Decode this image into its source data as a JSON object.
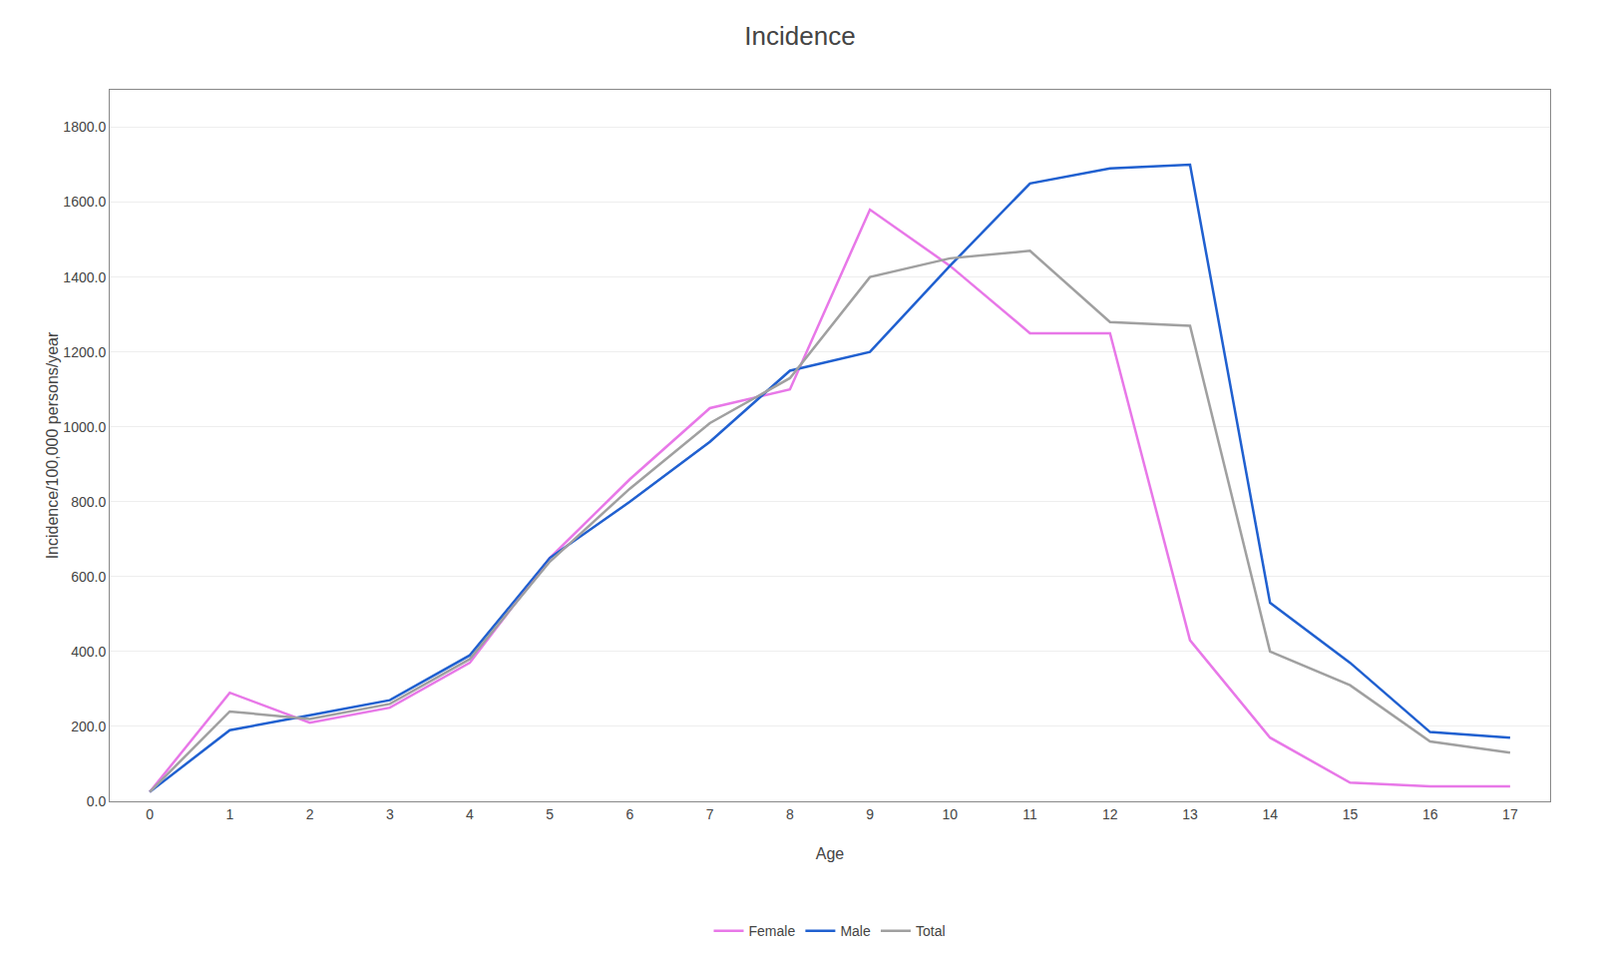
{
  "chart_data": {
    "type": "line",
    "title": "Incidence",
    "xlabel": "Age",
    "ylabel": "Incidence/100,000 persons/year",
    "x": [
      0,
      1,
      2,
      3,
      4,
      5,
      6,
      7,
      8,
      9,
      10,
      11,
      12,
      13,
      14,
      15,
      16,
      17
    ],
    "series": [
      {
        "name": "Female",
        "color": "#e878e8",
        "values": [
          25,
          290,
          210,
          250,
          370,
          650,
          860,
          1050,
          1100,
          1580,
          1430,
          1250,
          1250,
          430,
          170,
          50,
          40,
          40
        ]
      },
      {
        "name": "Male",
        "color": "#2060d0",
        "values": [
          25,
          190,
          230,
          270,
          390,
          650,
          800,
          960,
          1150,
          1200,
          1430,
          1650,
          1690,
          1700,
          530,
          370,
          185,
          170
        ]
      },
      {
        "name": "Total",
        "color": "#a0a0a0",
        "values": [
          25,
          240,
          220,
          260,
          380,
          640,
          835,
          1010,
          1130,
          1400,
          1450,
          1470,
          1280,
          1270,
          400,
          310,
          160,
          130
        ]
      }
    ],
    "xlim": [
      -0.5,
      17.5
    ],
    "xticks": [
      0,
      1,
      2,
      3,
      4,
      5,
      6,
      7,
      8,
      9,
      10,
      11,
      12,
      13,
      14,
      15,
      16,
      17
    ],
    "ylim": [
      0.0,
      1900.0
    ],
    "yticks": [
      {
        "value": 0,
        "label": "0.0"
      },
      {
        "value": 200,
        "label": "200.0"
      },
      {
        "value": 400,
        "label": "400.0"
      },
      {
        "value": 600,
        "label": "600.0"
      },
      {
        "value": 800,
        "label": "800.0"
      },
      {
        "value": 1000,
        "label": "1000.0"
      },
      {
        "value": 1200,
        "label": "1200.0"
      },
      {
        "value": 1400,
        "label": "1400.0"
      },
      {
        "value": 1600,
        "label": "1600.0"
      },
      {
        "value": 1800,
        "label": "1800.0"
      }
    ],
    "grid": "y",
    "legend": "bottom"
  }
}
